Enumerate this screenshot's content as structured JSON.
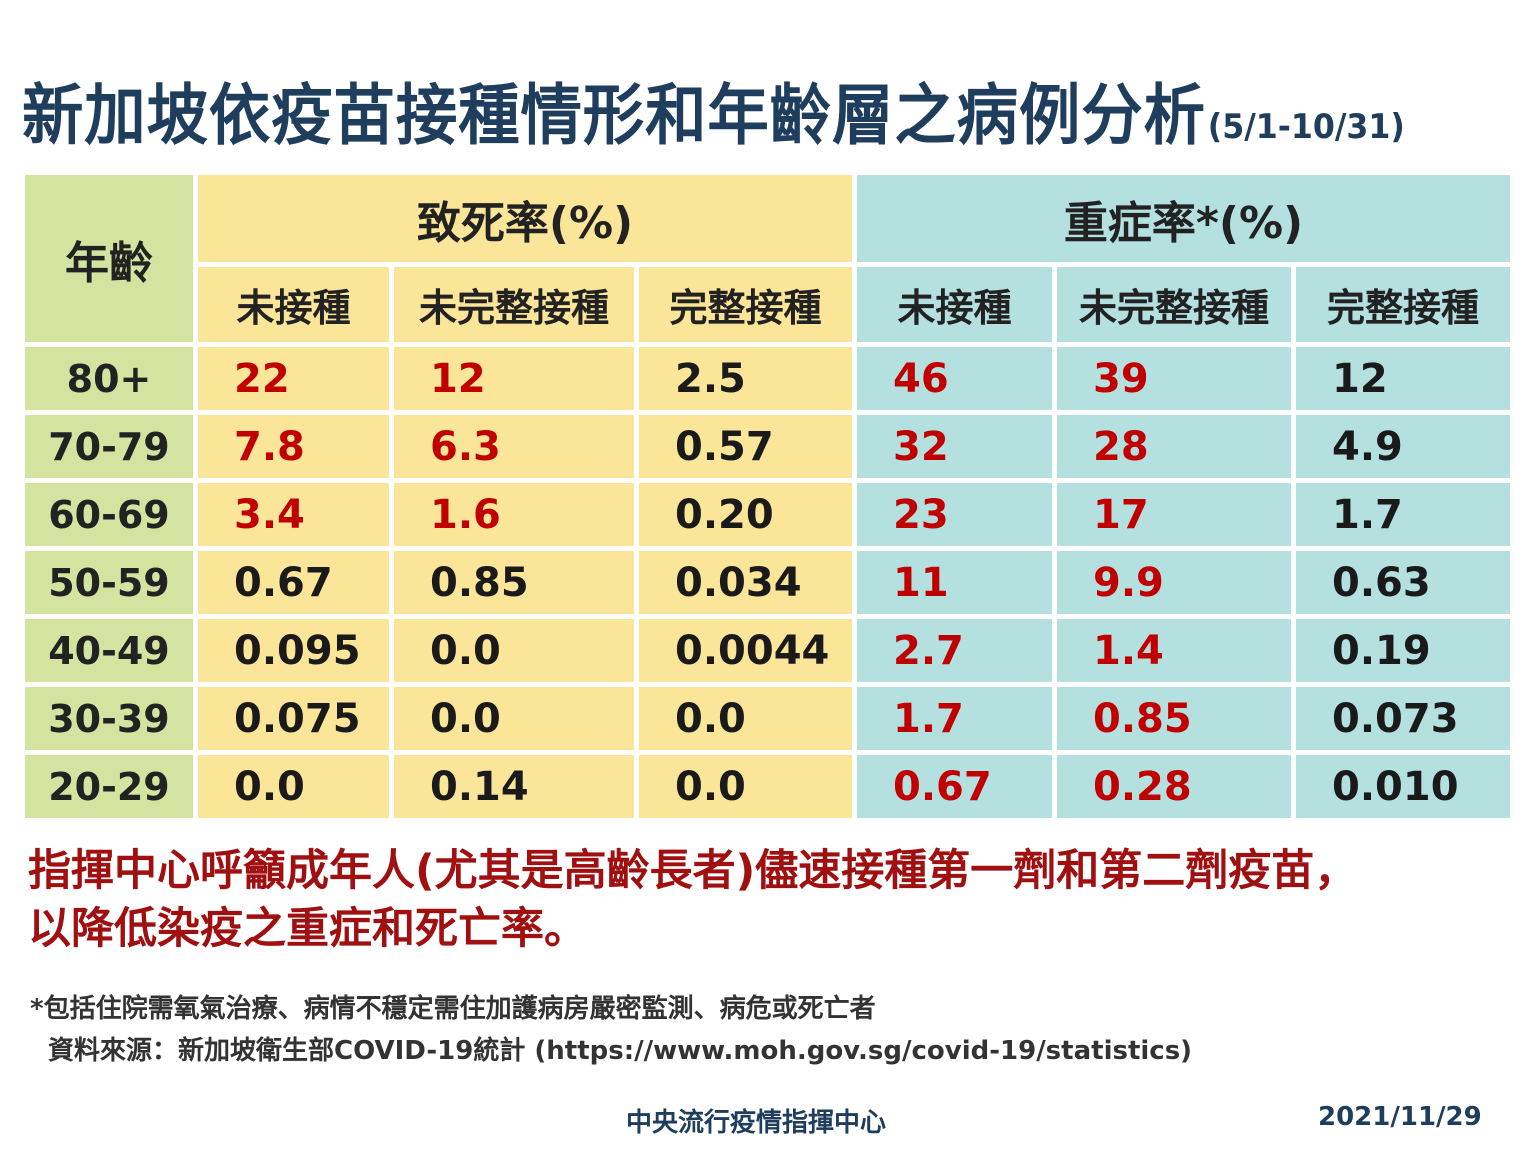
{
  "title": {
    "main": "新加坡依疫苗接種情形和年齡層之病例分析",
    "date_range": "(5/1-10/31)"
  },
  "table": {
    "age_header": "年齡",
    "group_headers": [
      "致死率(%)",
      "重症率*(%)"
    ],
    "sub_headers": [
      "未接種",
      "未完整接種",
      "完整接種",
      "未接種",
      "未完整接種",
      "完整接種"
    ],
    "colors": {
      "age_col": "#d4e39f",
      "fatality": "#fbe599",
      "severe": "#b4e0e0",
      "highlight_text": "#c00000"
    },
    "rows": [
      {
        "age": "80+",
        "values": [
          "22",
          "12",
          "2.5",
          "46",
          "39",
          "12"
        ],
        "highlight": [
          true,
          true,
          false,
          true,
          true,
          false
        ]
      },
      {
        "age": "70-79",
        "values": [
          "7.8",
          "6.3",
          "0.57",
          "32",
          "28",
          "4.9"
        ],
        "highlight": [
          true,
          true,
          false,
          true,
          true,
          false
        ]
      },
      {
        "age": "60-69",
        "values": [
          "3.4",
          "1.6",
          "0.20",
          "23",
          "17",
          "1.7"
        ],
        "highlight": [
          true,
          true,
          false,
          true,
          true,
          false
        ]
      },
      {
        "age": "50-59",
        "values": [
          "0.67",
          "0.85",
          "0.034",
          "11",
          "9.9",
          "0.63"
        ],
        "highlight": [
          false,
          false,
          false,
          true,
          true,
          false
        ]
      },
      {
        "age": "40-49",
        "values": [
          "0.095",
          "0.0",
          "0.0044",
          "2.7",
          "1.4",
          "0.19"
        ],
        "highlight": [
          false,
          false,
          false,
          true,
          true,
          false
        ]
      },
      {
        "age": "30-39",
        "values": [
          "0.075",
          "0.0",
          "0.0",
          "1.7",
          "0.85",
          "0.073"
        ],
        "highlight": [
          false,
          false,
          false,
          true,
          true,
          false
        ]
      },
      {
        "age": "20-29",
        "values": [
          "0.0",
          "0.14",
          "0.0",
          "0.67",
          "0.28",
          "0.010"
        ],
        "highlight": [
          false,
          false,
          false,
          true,
          true,
          false
        ]
      }
    ]
  },
  "appeal": {
    "line1": "指揮中心呼籲成年人(尤其是高齡長者)儘速接種第一劑和第二劑疫苗，",
    "line2": "以降低染疫之重症和死亡率。"
  },
  "notes": {
    "definition": "*包括住院需氧氣治療、病情不穩定需住加護病房嚴密監測、病危或死亡者",
    "source": "資料來源：新加坡衛生部COVID-19統計 (https://www.moh.gov.sg/covid-19/statistics)"
  },
  "footer": {
    "org": "中央流行疫情指揮中心",
    "date": "2021/11/29"
  }
}
